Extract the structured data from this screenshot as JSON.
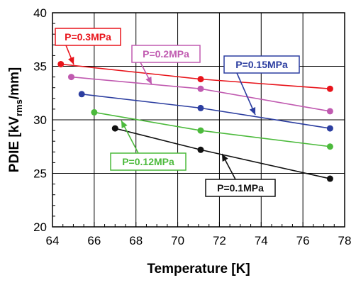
{
  "chart_data": {
    "type": "line",
    "xlabel": "Temperature [K]",
    "ylabel": {
      "prefix": "PDIE [kV",
      "sub": "rms",
      "suffix": "/mm]"
    },
    "xlim": [
      64,
      78
    ],
    "ylim": [
      20,
      40
    ],
    "xticks": [
      64,
      66,
      68,
      70,
      72,
      74,
      76,
      78
    ],
    "yticks": [
      20,
      25,
      30,
      35,
      40
    ],
    "grid": true,
    "series": [
      {
        "name": "P=0.3MPa",
        "color": "#e8141b",
        "points": [
          [
            64.4,
            35.2
          ],
          [
            71.1,
            33.8
          ],
          [
            77.3,
            32.9
          ]
        ]
      },
      {
        "name": "P=0.2MPa",
        "color": "#c05ab0",
        "points": [
          [
            64.9,
            34.0
          ],
          [
            71.1,
            32.9
          ],
          [
            77.3,
            30.8
          ]
        ]
      },
      {
        "name": "P=0.15MPa",
        "color": "#2c3ea0",
        "points": [
          [
            65.4,
            32.4
          ],
          [
            71.1,
            31.1
          ],
          [
            77.3,
            29.2
          ]
        ]
      },
      {
        "name": "P=0.12MPa",
        "color": "#4cba3c",
        "points": [
          [
            66.0,
            30.7
          ],
          [
            71.1,
            29.0
          ],
          [
            77.3,
            27.5
          ]
        ]
      },
      {
        "name": "P=0.1MPa",
        "color": "#111111",
        "points": [
          [
            67.0,
            29.2
          ],
          [
            71.1,
            27.2
          ],
          [
            77.3,
            24.5
          ]
        ]
      }
    ]
  }
}
